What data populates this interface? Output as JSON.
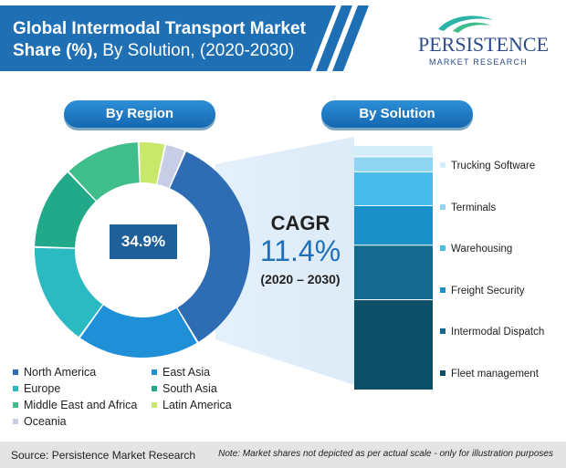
{
  "header": {
    "title_bold_1": "Global Intermodal Transport Market",
    "title_bold_2": "Share (%),",
    "title_normal": " By Solution, (2020-2030)"
  },
  "logo": {
    "word": "PERSISTENCE",
    "sub": "MARKET RESEARCH"
  },
  "pills": {
    "region": "By Region",
    "solution": "By Solution"
  },
  "center_label": "34.9%",
  "cagr": {
    "label": "CAGR",
    "value": "11.4%",
    "period": "(2020 – 2030)"
  },
  "footer": {
    "source": "Source: Persistence Market Research",
    "note": "Note: Market shares not depicted as per actual scale - only for illustration purposes"
  },
  "chart_data": [
    {
      "type": "pie",
      "title": "By Region",
      "categories": [
        "North America",
        "East Asia",
        "Europe",
        "South Asia",
        "Middle East and Africa",
        "Latin America",
        "Oceania"
      ],
      "values": [
        34.9,
        18.5,
        15.5,
        12.5,
        11.5,
        4.0,
        3.1
      ],
      "colors": [
        "#2e6db4",
        "#1f8fd8",
        "#2bb9c2",
        "#22a98a",
        "#3fbe8c",
        "#c7e86a",
        "#c8cde6"
      ],
      "annotation": "34.9%"
    },
    {
      "type": "bar",
      "title": "By Solution",
      "categories": [
        "Trucking Software",
        "Terminals",
        "Warehousing",
        "Freight Security",
        "Intermodal Dispatch",
        "Fleet management"
      ],
      "values": [
        6,
        8,
        18,
        21,
        29,
        48
      ],
      "colors": [
        "#d4eef9",
        "#8fd4f0",
        "#48bbea",
        "#1a8fc8",
        "#146a8e",
        "#0d4f66"
      ],
      "note": "stacked single column; shares not depicted as per actual scale"
    }
  ]
}
